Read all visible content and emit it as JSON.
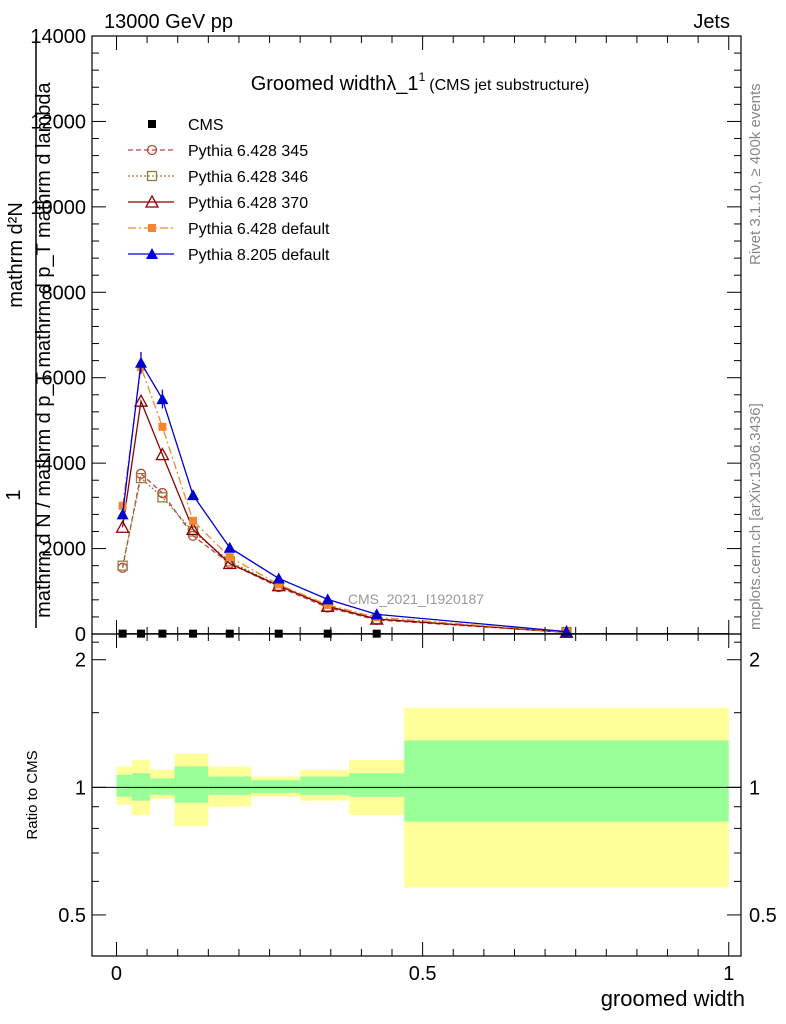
{
  "header": {
    "left_label": "13000 GeV pp",
    "right_label": "Jets"
  },
  "side_labels": {
    "rivet": "Rivet 3.1.10, ≥ 400k events",
    "mcplots": "mcplots.cern.ch [arXiv:1306.3436]"
  },
  "watermark": "CMS_2021_I1920187",
  "chart_data": [
    {
      "type": "line",
      "title": "Groomed widthλ_1",
      "title_superscript": "1",
      "title_suffix": "(CMS jet substructure)",
      "xlabel": "groomed width",
      "ylabel_numerator": "1",
      "ylabel_denominator": "mathrm d N / mathrm d p_T",
      "ylabel_mid": "mathrm d p_T mathrm d lambda",
      "ylabel_num_top": "mathrm d²N",
      "xlim": [
        -0.04,
        1.02
      ],
      "ylim": [
        0,
        14000
      ],
      "yticks": [
        0,
        2000,
        4000,
        6000,
        8000,
        10000,
        12000,
        14000
      ],
      "ytick_labels": [
        "0",
        "2000",
        "4000",
        "6000",
        "8000",
        "10000",
        "12000",
        "14000"
      ],
      "x": [
        0.01,
        0.04,
        0.075,
        0.125,
        0.185,
        0.265,
        0.345,
        0.425,
        0.735
      ],
      "bin_edges": [
        0.0,
        0.025,
        0.055,
        0.095,
        0.15,
        0.22,
        0.3,
        0.38,
        0.47,
        1.0
      ],
      "series": [
        {
          "name": "CMS",
          "style": "cms",
          "color": "#000000",
          "values": [
            8,
            8,
            8,
            8,
            8,
            8,
            8,
            8,
            8
          ]
        },
        {
          "name": "Pythia 6.428 345",
          "style": "circle",
          "color": "#b5473f",
          "values": [
            1550,
            3750,
            3300,
            2300,
            1650,
            1100,
            620,
            330,
            40
          ]
        },
        {
          "name": "Pythia 6.428 346",
          "style": "square-open",
          "color": "#9a7b3d",
          "values": [
            1600,
            3650,
            3200,
            2400,
            1700,
            1130,
            640,
            350,
            45
          ]
        },
        {
          "name": "Pythia 6.428 370",
          "style": "triangle-open",
          "color": "#8b0000",
          "values": [
            2500,
            5450,
            4200,
            2450,
            1650,
            1130,
            650,
            350,
            40
          ]
        },
        {
          "name": "Pythia 6.428 default",
          "style": "square-filled",
          "color": "#f5862f",
          "values": [
            3000,
            6250,
            4850,
            2650,
            1800,
            1160,
            680,
            390,
            45
          ]
        },
        {
          "name": "Pythia 8.205 default",
          "style": "triangle-filled",
          "color": "#0000d0",
          "values": [
            2800,
            6350,
            5500,
            3250,
            2020,
            1300,
            810,
            460,
            55
          ]
        }
      ]
    },
    {
      "type": "area",
      "title": "",
      "xlabel": "groomed width",
      "ylabel": "Ratio to CMS",
      "xlim": [
        -0.04,
        1.02
      ],
      "ylim": [
        0.4,
        2.3
      ],
      "yticks": [
        0.5,
        1,
        2
      ],
      "ytick_labels": [
        "0.5",
        "1",
        "2"
      ],
      "xticks": [
        0,
        0.5,
        1
      ],
      "xtick_labels": [
        "0",
        "0.5",
        "1"
      ],
      "bin_edges": [
        0.0,
        0.025,
        0.055,
        0.095,
        0.15,
        0.22,
        0.3,
        0.38,
        0.47,
        1.0
      ],
      "stat_band": {
        "name": "stat",
        "color": "#99ff99",
        "lower": [
          0.95,
          0.93,
          0.96,
          0.92,
          0.96,
          0.97,
          0.96,
          0.95,
          0.83
        ],
        "upper": [
          1.07,
          1.08,
          1.05,
          1.12,
          1.06,
          1.04,
          1.06,
          1.08,
          1.29
        ]
      },
      "syst_band": {
        "name": "stat+syst",
        "color": "#ffff99",
        "lower": [
          0.91,
          0.86,
          0.94,
          0.81,
          0.9,
          0.95,
          0.93,
          0.86,
          0.58
        ],
        "upper": [
          1.12,
          1.16,
          1.1,
          1.2,
          1.12,
          1.06,
          1.1,
          1.16,
          1.54
        ]
      },
      "reference_line": 1
    }
  ]
}
